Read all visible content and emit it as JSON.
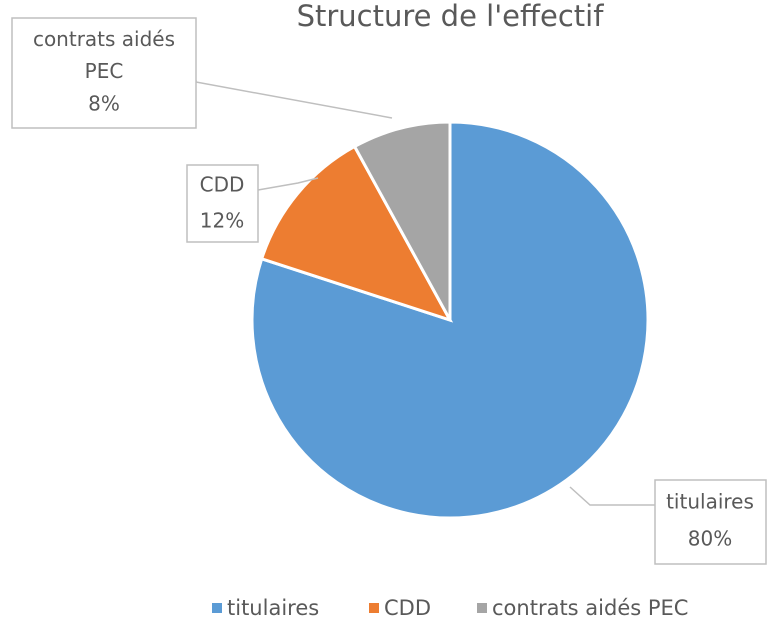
{
  "chart_data": {
    "type": "pie",
    "title": "Structure de l'effectif",
    "categories": [
      "titulaires",
      "CDD",
      "contrats aidés PEC"
    ],
    "values": [
      80,
      12,
      8
    ],
    "value_labels": [
      "80%",
      "12%",
      "8%"
    ],
    "colors": [
      "#5b9bd5",
      "#ed7d31",
      "#a5a5a5"
    ]
  }
}
